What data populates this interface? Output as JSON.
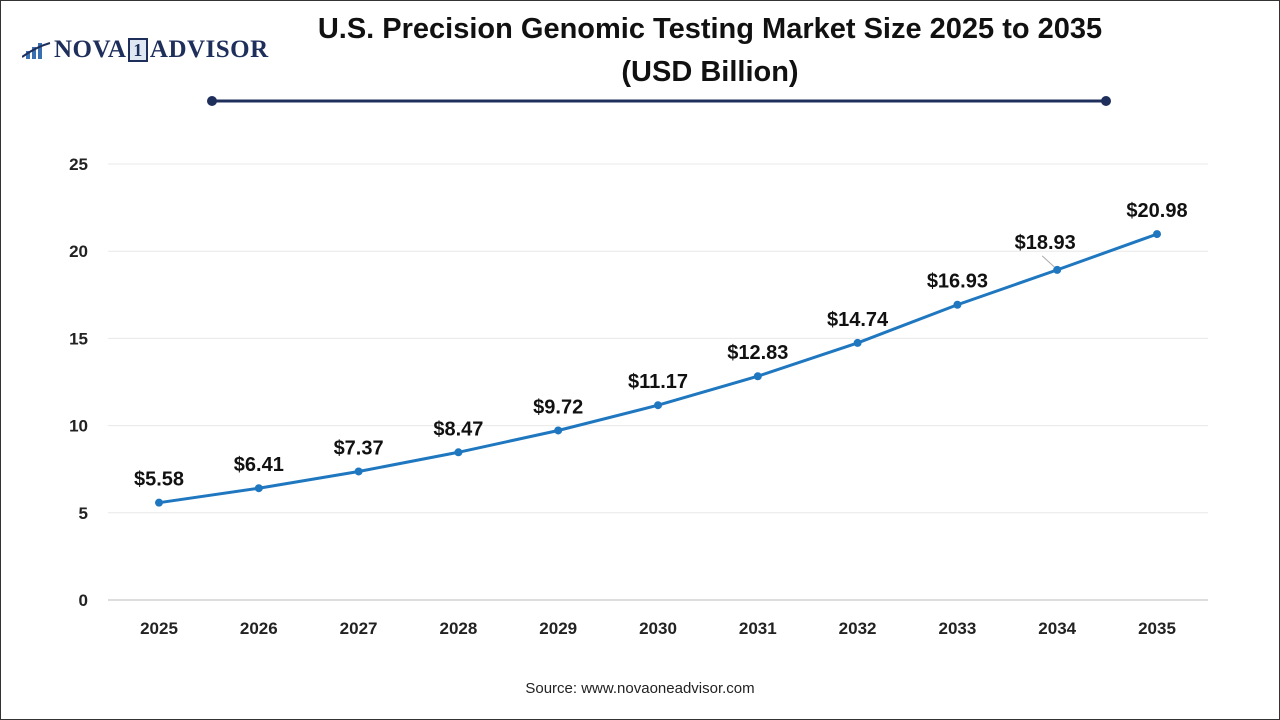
{
  "logo": {
    "text_left": "NOVA",
    "text_digit": "1",
    "text_right": "ADVISOR"
  },
  "title": "U.S. Precision Genomic Testing Market Size 2025 to 2035 (USD Billion)",
  "source": "Source: www.novaoneadvisor.com",
  "colors": {
    "line": "#1f77c0",
    "title_rule": "#1f2f5c",
    "grid": "#e8e8e8"
  },
  "chart_data": {
    "type": "line",
    "title": "U.S. Precision Genomic Testing Market Size 2025 to 2035 (USD Billion)",
    "xlabel": "",
    "ylabel": "",
    "categories": [
      "2025",
      "2026",
      "2027",
      "2028",
      "2029",
      "2030",
      "2031",
      "2032",
      "2033",
      "2034",
      "2035"
    ],
    "values": [
      5.58,
      6.41,
      7.37,
      8.47,
      9.72,
      11.17,
      12.83,
      14.74,
      16.93,
      18.93,
      20.98
    ],
    "data_labels": [
      "$5.58",
      "$6.41",
      "$7.37",
      "$8.47",
      "$9.72",
      "$11.17",
      "$12.83",
      "$14.74",
      "$16.93",
      "$18.93",
      "$20.98"
    ],
    "ylim": [
      0,
      25
    ],
    "yticks": [
      0,
      5,
      10,
      15,
      20,
      25
    ],
    "grid": true,
    "legend": "none"
  }
}
